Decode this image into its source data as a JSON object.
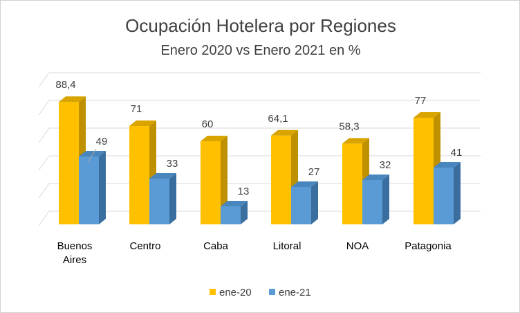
{
  "chart_data": {
    "type": "bar",
    "title": "Ocupación Hotelera por Regiones",
    "subtitle": "Enero 2020 vs Enero 2021 en %",
    "categories": [
      [
        "Buenos",
        "Aires"
      ],
      [
        "Centro"
      ],
      [
        "Caba"
      ],
      [
        "Litoral"
      ],
      [
        "NOA"
      ],
      [
        "Patagonia"
      ]
    ],
    "series": [
      {
        "name": "ene-20",
        "values": [
          88.4,
          71,
          60,
          64.1,
          58.3,
          77
        ],
        "labels": [
          "88,4",
          "71",
          "60",
          "64,1",
          "58,3",
          "77"
        ],
        "color": "#FFC000",
        "side_color": "#BF9000",
        "top_color": "#D9A300"
      },
      {
        "name": "ene-21",
        "values": [
          49,
          33,
          13,
          27,
          32,
          41
        ],
        "labels": [
          "49",
          "33",
          "13",
          "27",
          "32",
          "41"
        ],
        "color": "#5B9BD5",
        "side_color": "#3A6E9E",
        "top_color": "#4A86BE"
      }
    ],
    "ylim": [
      0,
      100
    ],
    "grid": true,
    "legend_position": "bottom"
  }
}
